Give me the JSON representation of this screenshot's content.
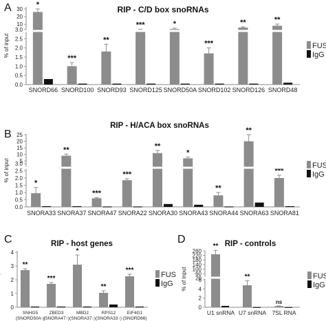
{
  "colors": {
    "fus": "#8c8c8c",
    "igg": "#111111",
    "axis": "#888888"
  },
  "chart_data": [
    {
      "panel": "A",
      "type": "bar",
      "title": "RIP - C/D box snoRNAs",
      "ylabel": "% of input",
      "axis_break": true,
      "ylim": [
        0,
        30
      ],
      "categories": [
        "SNORD66",
        "SNORD100",
        "SNORD93",
        "SNORD125",
        "SNORD50A",
        "SNORD102",
        "SNORD126",
        "SNORD48"
      ],
      "series": [
        {
          "name": "FUS",
          "values": [
            26,
            1.0,
            1.8,
            2.9,
            3.6,
            1.7,
            5.6,
            8.0
          ],
          "errors": [
            4,
            0.2,
            0.4,
            0.4,
            1.2,
            0.3,
            1.0,
            2.2
          ]
        },
        {
          "name": "IgG",
          "values": [
            0.3,
            0.05,
            0.05,
            0.05,
            0.05,
            0.05,
            0.05,
            0.1
          ]
        }
      ],
      "significance": [
        "*",
        "***",
        "**",
        "***",
        "*",
        "***",
        "**",
        "**"
      ],
      "legend_position": "right"
    },
    {
      "panel": "B",
      "type": "bar",
      "title": "RIP - H/ACA box snoRNAs",
      "ylabel": "% of input",
      "axis_break": true,
      "ylim": [
        0,
        25
      ],
      "categories": [
        "SNORA33",
        "SNORA37",
        "SNORA47",
        "SNORA22",
        "SNORA30",
        "SNORA43",
        "SNORA44",
        "SNORA63",
        "SNORA81"
      ],
      "series": [
        {
          "name": "FUS",
          "values": [
            0.95,
            9.0,
            0.6,
            1.85,
            11.0,
            7.0,
            0.8,
            20.0,
            2.0
          ],
          "errors": [
            0.4,
            1.2,
            0.05,
            0.1,
            2.0,
            1.0,
            0.2,
            5.0,
            0.2
          ]
        },
        {
          "name": "IgG",
          "values": [
            0.05,
            0.05,
            0.03,
            0.03,
            0.2,
            0.15,
            0.03,
            0.3,
            0.05
          ]
        }
      ],
      "significance": [
        "*",
        "**",
        "***",
        "***",
        "**",
        "*",
        "**",
        "**",
        "***"
      ],
      "legend_position": "right"
    },
    {
      "panel": "C",
      "type": "bar",
      "title": "RIP - host genes",
      "ylabel": "% of input",
      "ylim": [
        0,
        4
      ],
      "categories": [
        "SNHG5 (SNORD50A↑)",
        "ZBED3 (SNORA47↑)",
        "MBD2 (SNORA37↑)",
        "RPS12 (SNORA33↑)",
        "EIF4G1 (SNORD66)"
      ],
      "category_lines": [
        [
          "SNHG5",
          "(SNORD50A↑)"
        ],
        [
          "ZBED3",
          "(SNORA47↑)"
        ],
        [
          "MBD2",
          "(SNORA37↑)"
        ],
        [
          "RPS12",
          "(SNORA33↑)"
        ],
        [
          "EIF4G1",
          "(SNORD66)"
        ]
      ],
      "series": [
        {
          "name": "FUS",
          "values": [
            2.7,
            1.7,
            3.1,
            1.05,
            2.25
          ],
          "errors": [
            0.1,
            0.1,
            0.7,
            0.15,
            0.15
          ]
        },
        {
          "name": "IgG",
          "values": [
            0.05,
            0.05,
            0.05,
            0.2,
            0.05
          ]
        }
      ],
      "significance": [
        "**",
        "***",
        "*",
        "**",
        "***"
      ],
      "legend_position": "right"
    },
    {
      "panel": "D",
      "type": "bar",
      "title": "RIP - controls",
      "ylabel": "% of input",
      "axis_break": true,
      "ylim": [
        0,
        260
      ],
      "categories": [
        "U1 snRNA",
        "U7 snRNA",
        "7SL RNA"
      ],
      "series": [
        {
          "name": "FUS",
          "values": [
            230,
            4.8,
            0.25
          ],
          "errors": [
            35,
            1.0,
            0.05
          ]
        },
        {
          "name": "IgG",
          "values": [
            0.3,
            0.05,
            0.05
          ]
        }
      ],
      "significance": [
        "**",
        "**",
        "ns"
      ],
      "legend_position": "right"
    }
  ]
}
